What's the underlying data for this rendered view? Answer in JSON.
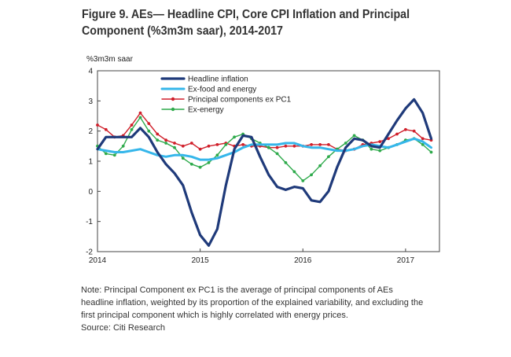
{
  "figure": {
    "title_line1": "Figure 9. AEs— Headline CPI, Core CPI Inflation and Principal",
    "title_line2": "Component (%3m3m saar), 2014-2017"
  },
  "note": {
    "line1": "Note: Principal Component ex PC1 is the average of principal components of AEs",
    "line2": "headline inflation, weighted by its proportion of the explained variability, and excluding the",
    "line3": "first principal component which is highly correlated with energy prices.",
    "line4": "Source: Citi Research"
  },
  "chart_data": {
    "type": "line",
    "title": "",
    "xlabel": "",
    "ylabel": "%3m3m saar",
    "xlim": [
      2014.0,
      2017.33
    ],
    "ylim": [
      -2,
      4
    ],
    "yticks": [
      -2,
      -1,
      0,
      1,
      2,
      3,
      4
    ],
    "xticks": [
      {
        "value": 2014.0,
        "label": "2014"
      },
      {
        "value": 2015.0,
        "label": "2015"
      },
      {
        "value": 2016.0,
        "label": "2016"
      },
      {
        "value": 2017.0,
        "label": "2017"
      }
    ],
    "grid": false,
    "legend_position": "top-left",
    "x": [
      2014.0,
      2014.083,
      2014.167,
      2014.25,
      2014.333,
      2014.417,
      2014.5,
      2014.583,
      2014.667,
      2014.75,
      2014.833,
      2014.917,
      2015.0,
      2015.083,
      2015.167,
      2015.25,
      2015.333,
      2015.417,
      2015.5,
      2015.583,
      2015.667,
      2015.75,
      2015.833,
      2015.917,
      2016.0,
      2016.083,
      2016.167,
      2016.25,
      2016.333,
      2016.417,
      2016.5,
      2016.583,
      2016.667,
      2016.75,
      2016.833,
      2016.917,
      2017.0,
      2017.083,
      2017.167,
      2017.25
    ],
    "series": [
      {
        "name": "Headline inflation",
        "color": "#1f3a7a",
        "markers": false,
        "values": [
          1.4,
          1.8,
          1.8,
          1.8,
          1.8,
          2.1,
          1.8,
          1.3,
          0.9,
          0.6,
          0.2,
          -0.7,
          -1.45,
          -1.8,
          -1.25,
          0.2,
          1.4,
          1.85,
          1.8,
          1.15,
          0.55,
          0.15,
          0.05,
          0.15,
          0.1,
          -0.3,
          -0.35,
          0.0,
          0.8,
          1.45,
          1.75,
          1.7,
          1.5,
          1.45,
          1.9,
          2.35,
          2.75,
          3.05,
          2.6,
          1.75
        ]
      },
      {
        "name": "Ex-food and energy",
        "color": "#35b6ea",
        "markers": false,
        "values": [
          1.4,
          1.35,
          1.3,
          1.3,
          1.35,
          1.4,
          1.3,
          1.2,
          1.15,
          1.2,
          1.2,
          1.15,
          1.05,
          1.05,
          1.1,
          1.2,
          1.3,
          1.45,
          1.55,
          1.55,
          1.55,
          1.55,
          1.6,
          1.6,
          1.5,
          1.45,
          1.45,
          1.4,
          1.35,
          1.35,
          1.4,
          1.5,
          1.55,
          1.5,
          1.45,
          1.55,
          1.65,
          1.75,
          1.65,
          1.45
        ]
      },
      {
        "name": "Principal components ex PC1",
        "color": "#d01f2a",
        "markers": true,
        "values": [
          2.2,
          2.05,
          1.8,
          1.85,
          2.2,
          2.6,
          2.25,
          1.9,
          1.7,
          1.6,
          1.5,
          1.6,
          1.4,
          1.5,
          1.55,
          1.6,
          1.5,
          1.55,
          1.5,
          1.5,
          1.45,
          1.45,
          1.5,
          1.5,
          1.5,
          1.55,
          1.55,
          1.55,
          1.4,
          1.35,
          1.4,
          1.55,
          1.6,
          1.65,
          1.75,
          1.9,
          2.05,
          2.0,
          1.75,
          1.7
        ]
      },
      {
        "name": "Ex-energy",
        "color": "#2eaa4b",
        "markers": true,
        "values": [
          1.5,
          1.25,
          1.2,
          1.5,
          2.05,
          2.45,
          2.0,
          1.7,
          1.6,
          1.45,
          1.1,
          0.9,
          0.8,
          0.95,
          1.2,
          1.55,
          1.8,
          1.9,
          1.75,
          1.6,
          1.45,
          1.25,
          0.95,
          0.65,
          0.35,
          0.55,
          0.85,
          1.15,
          1.4,
          1.6,
          1.85,
          1.7,
          1.4,
          1.35,
          1.45,
          1.55,
          1.7,
          1.75,
          1.55,
          1.3
        ]
      }
    ]
  }
}
